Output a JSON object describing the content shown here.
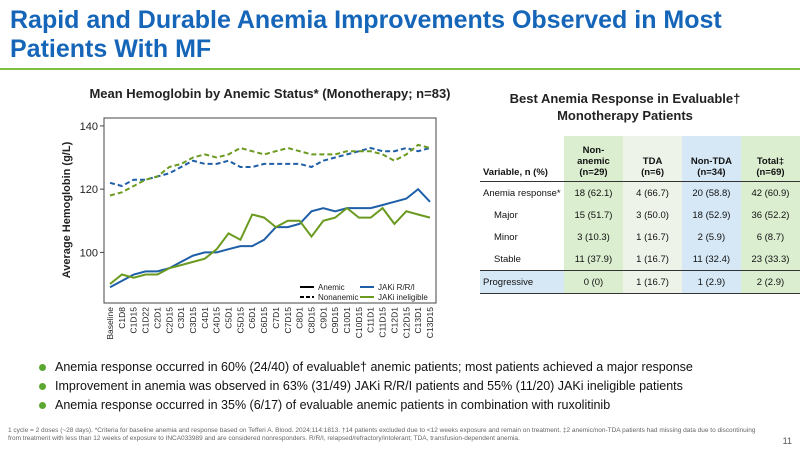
{
  "title": "Rapid and Durable Anemia Improvements Observed in Most Patients With MF",
  "chart_data": {
    "type": "line",
    "title": "Mean Hemoglobin by Anemic Status* (Monotherapy; n=83)",
    "y_label": "Average Hemoglobin (g/L)",
    "categories": [
      "Baseline",
      "C1D8",
      "C1D15",
      "C1D22",
      "C2D1",
      "C2D15",
      "C3D1",
      "C3D15",
      "C4D1",
      "C4D15",
      "C5D1",
      "C5D15",
      "C6D1",
      "C6D15",
      "C7D1",
      "C7D15",
      "C8D1",
      "C8D15",
      "C9D1",
      "C9D15",
      "C10D1",
      "C10D15",
      "C11D1",
      "C11D15",
      "C12D1",
      "C12D15",
      "C13D1",
      "C13D15"
    ],
    "ylim": [
      84,
      142.5
    ],
    "yticks": [
      100,
      120,
      140
    ],
    "series": [
      {
        "color": "#1f5fa8",
        "dash": false,
        "values": [
          89,
          91,
          93,
          94,
          94,
          95,
          97,
          99,
          100,
          100,
          101,
          102,
          102,
          104,
          108,
          108,
          109,
          113,
          114,
          113,
          114,
          114,
          114,
          115,
          116,
          117,
          120,
          116
        ]
      },
      {
        "color": "#6a9a1f",
        "dash": false,
        "values": [
          90,
          93,
          92,
          93,
          93,
          95,
          96,
          97,
          98,
          101,
          106,
          104,
          112,
          111,
          108,
          110,
          110,
          105,
          110,
          111,
          114,
          111,
          111,
          114,
          109,
          113,
          112,
          111
        ]
      },
      {
        "color": "#1f5fa8",
        "dash": true,
        "values": [
          122,
          121,
          123,
          123,
          124,
          125,
          127,
          129,
          128,
          128,
          129,
          127,
          127,
          128,
          128,
          128,
          128,
          127,
          129,
          130,
          131,
          132,
          133,
          132,
          132,
          133,
          132,
          133
        ]
      },
      {
        "color": "#6a9a1f",
        "dash": true,
        "values": [
          118,
          119,
          121,
          123,
          124,
          127,
          128,
          130,
          131,
          130,
          131,
          133,
          132,
          131,
          132,
          133,
          132,
          131,
          131,
          131,
          132,
          132,
          132,
          131,
          129,
          131,
          134,
          133
        ]
      }
    ],
    "legend": [
      {
        "label": "Anemic",
        "color": "#000000",
        "dash": false
      },
      {
        "label": "JAKi R/R/I",
        "color": "#1f5fa8",
        "dash": false
      },
      {
        "label": "Nonanemic",
        "color": "#000000",
        "dash": true
      },
      {
        "label": "JAKi ineligible",
        "color": "#6a9a1f",
        "dash": false
      }
    ]
  },
  "table": {
    "title": "Best Anemia Response in Evaluable† Monotherapy Patients",
    "columns": [
      {
        "label": "Variable, n (%)"
      },
      {
        "label": "Non-anemic",
        "n": "(n=29)"
      },
      {
        "label": "TDA",
        "n": "(n=6)"
      },
      {
        "label": "Non-TDA",
        "n": "(n=34)"
      },
      {
        "label": "Total‡",
        "n": "(n=69)"
      }
    ],
    "rows": [
      [
        "Anemia response*",
        "18 (62.1)",
        "4 (66.7)",
        "20 (58.8)",
        "42 (60.9)"
      ],
      [
        "Major",
        "15 (51.7)",
        "3 (50.0)",
        "18 (52.9)",
        "36 (52.2)"
      ],
      [
        "Minor",
        "3 (10.3)",
        "1 (16.7)",
        "2 (5.9)",
        "6 (8.7)"
      ],
      [
        "Stable",
        "11 (37.9)",
        "1 (16.7)",
        "11 (32.4)",
        "23 (33.3)"
      ],
      [
        "Progressive",
        "0 (0)",
        "1 (16.7)",
        "1 (2.9)",
        "2 (2.9)"
      ]
    ]
  },
  "bullets": [
    "Anemia response occurred in 60% (24/40) of evaluable† anemic patients; most patients achieved a major response",
    "Improvement in anemia was observed in 63% (31/49) JAKi R/R/I patients and 55% (11/20) JAKi ineligible patients",
    "Anemia response occurred in 35% (6/17) of evaluable anemic patients in combination with ruxolitinib"
  ],
  "footnote": "1 cycle = 2 doses (~28 days). *Criteria for baseline anemia and response based on Tefferi A. Blood. 2024;114:1813. †14 patients excluded due to <12 weeks exposure and remain on treatment. ‡2 anemic/non-TDA patients had missing data due to discontinuing from treatment with less than 12 weeks of exposure to INCA033989 and are considered nonresponders. R/R/I, relapsed/refractory/intolerant; TDA, transfusion-dependent anemia.",
  "page_number": "11"
}
